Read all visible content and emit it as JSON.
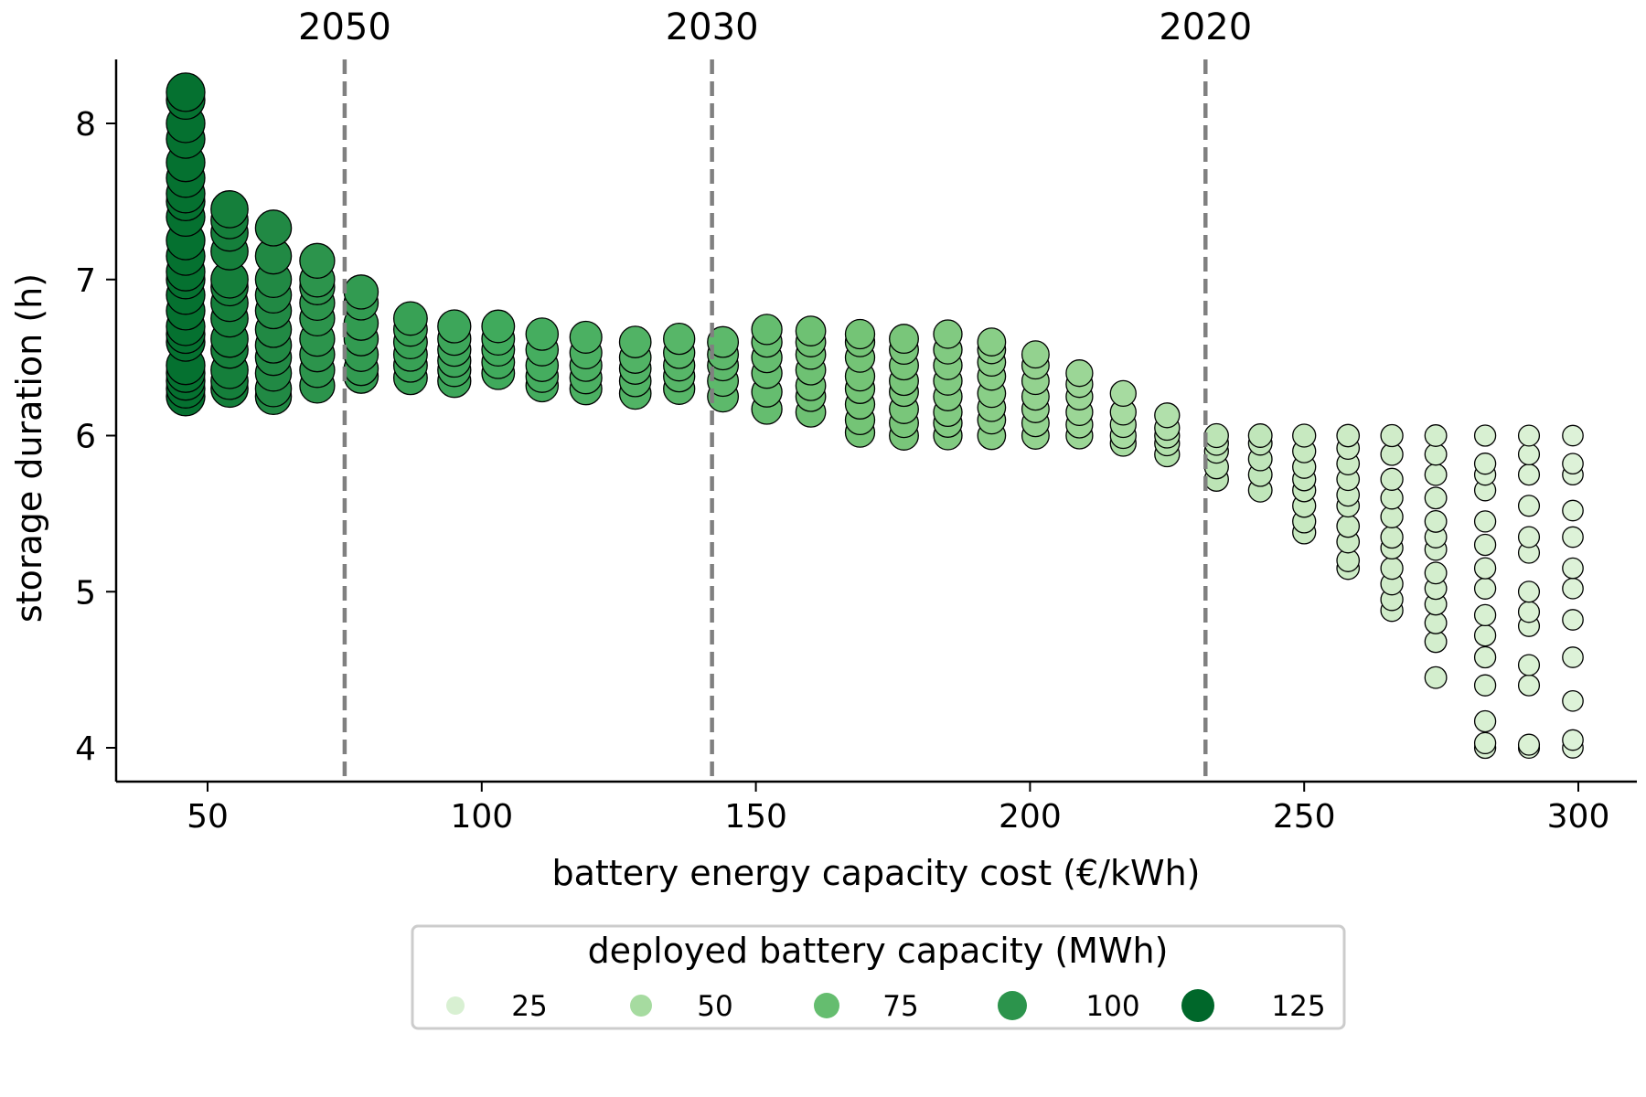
{
  "chart_data": {
    "type": "scatter",
    "xlabel": "battery energy capacity cost (€/kWh)",
    "ylabel": "storage duration (h)",
    "xlim": [
      33,
      312
    ],
    "ylim": [
      3.8,
      8.4
    ],
    "x_ticks": [
      50,
      100,
      150,
      200,
      250,
      300
    ],
    "y_ticks": [
      4,
      5,
      6,
      7,
      8
    ],
    "grid": false,
    "vertical_lines": [
      {
        "x": 75,
        "label": "2050"
      },
      {
        "x": 142,
        "label": "2030"
      },
      {
        "x": 232,
        "label": "2020"
      }
    ],
    "legend": {
      "title": "deployed battery capacity (MWh)",
      "placement": "below",
      "entries": [
        {
          "label": "25",
          "value": 25
        },
        {
          "label": "50",
          "value": 50
        },
        {
          "label": "75",
          "value": 75
        },
        {
          "label": "100",
          "value": 100
        },
        {
          "label": "125",
          "value": 125
        }
      ]
    },
    "color_scale": {
      "name": "Greens",
      "vmin": 0,
      "vmax": 140
    },
    "points_by_cost": [
      {
        "x": 46,
        "capacity": 120,
        "y": [
          6.25,
          6.3,
          6.35,
          6.4,
          6.45,
          6.6,
          6.65,
          6.7,
          6.8,
          6.9,
          7.0,
          7.05,
          7.15,
          7.25,
          7.4,
          7.5,
          7.55,
          7.65,
          7.75,
          7.9,
          8.0,
          8.15,
          8.2
        ]
      },
      {
        "x": 54,
        "capacity": 112,
        "y": [
          6.3,
          6.35,
          6.42,
          6.55,
          6.62,
          6.75,
          6.85,
          6.95,
          7.0,
          7.18,
          7.3,
          7.38,
          7.45
        ]
      },
      {
        "x": 62,
        "capacity": 106,
        "y": [
          6.25,
          6.3,
          6.4,
          6.5,
          6.58,
          6.68,
          6.8,
          6.9,
          7.0,
          7.15,
          7.33
        ]
      },
      {
        "x": 70,
        "capacity": 100,
        "y": [
          6.32,
          6.42,
          6.52,
          6.62,
          6.75,
          6.85,
          6.95,
          7.0,
          7.12
        ]
      },
      {
        "x": 78,
        "capacity": 96,
        "y": [
          6.38,
          6.43,
          6.52,
          6.62,
          6.72,
          6.85,
          6.92
        ]
      },
      {
        "x": 87,
        "capacity": 93,
        "y": [
          6.37,
          6.45,
          6.52,
          6.6,
          6.68,
          6.75
        ]
      },
      {
        "x": 95,
        "capacity": 90,
        "y": [
          6.35,
          6.42,
          6.48,
          6.55,
          6.62,
          6.7
        ]
      },
      {
        "x": 103,
        "capacity": 88,
        "y": [
          6.4,
          6.47,
          6.55,
          6.62,
          6.7
        ]
      },
      {
        "x": 111,
        "capacity": 86,
        "y": [
          6.32,
          6.38,
          6.45,
          6.55,
          6.65
        ]
      },
      {
        "x": 119,
        "capacity": 84,
        "y": [
          6.3,
          6.37,
          6.45,
          6.53,
          6.63
        ]
      },
      {
        "x": 128,
        "capacity": 82,
        "y": [
          6.27,
          6.35,
          6.43,
          6.5,
          6.6
        ]
      },
      {
        "x": 136,
        "capacity": 80,
        "y": [
          6.3,
          6.38,
          6.45,
          6.53,
          6.62
        ]
      },
      {
        "x": 144,
        "capacity": 78,
        "y": [
          6.25,
          6.35,
          6.45,
          6.52,
          6.6
        ]
      },
      {
        "x": 152,
        "capacity": 75,
        "y": [
          6.17,
          6.28,
          6.4,
          6.5,
          6.6,
          6.68
        ]
      },
      {
        "x": 160,
        "capacity": 72,
        "y": [
          6.15,
          6.25,
          6.32,
          6.42,
          6.52,
          6.6,
          6.67
        ]
      },
      {
        "x": 169,
        "capacity": 70,
        "y": [
          6.02,
          6.1,
          6.2,
          6.3,
          6.38,
          6.5,
          6.6,
          6.65
        ]
      },
      {
        "x": 177,
        "capacity": 68,
        "y": [
          6.0,
          6.08,
          6.17,
          6.28,
          6.35,
          6.45,
          6.55,
          6.62
        ]
      },
      {
        "x": 185,
        "capacity": 65,
        "y": [
          6.0,
          6.08,
          6.15,
          6.25,
          6.35,
          6.45,
          6.55,
          6.65
        ]
      },
      {
        "x": 193,
        "capacity": 62,
        "y": [
          6.0,
          6.1,
          6.18,
          6.27,
          6.38,
          6.47,
          6.55,
          6.6
        ]
      },
      {
        "x": 201,
        "capacity": 58,
        "y": [
          6.0,
          6.08,
          6.17,
          6.25,
          6.35,
          6.45,
          6.52
        ]
      },
      {
        "x": 209,
        "capacity": 55,
        "y": [
          6.0,
          6.07,
          6.15,
          6.25,
          6.33,
          6.4
        ]
      },
      {
        "x": 217,
        "capacity": 50,
        "y": [
          5.95,
          6.0,
          6.07,
          6.15,
          6.27
        ]
      },
      {
        "x": 225,
        "capacity": 45,
        "y": [
          5.88,
          5.95,
          6.0,
          6.05,
          6.13
        ]
      },
      {
        "x": 234,
        "capacity": 40,
        "y": [
          5.72,
          5.8,
          5.9,
          5.95,
          6.0
        ]
      },
      {
        "x": 242,
        "capacity": 38,
        "y": [
          5.65,
          5.75,
          5.85,
          5.95,
          6.0
        ]
      },
      {
        "x": 250,
        "capacity": 35,
        "y": [
          5.38,
          5.45,
          5.55,
          5.65,
          5.72,
          5.8,
          5.9,
          6.0
        ]
      },
      {
        "x": 258,
        "capacity": 32,
        "y": [
          5.15,
          5.2,
          5.32,
          5.42,
          5.55,
          5.62,
          5.72,
          5.82,
          5.92,
          6.0
        ]
      },
      {
        "x": 266,
        "capacity": 30,
        "y": [
          4.88,
          4.95,
          5.05,
          5.15,
          5.28,
          5.35,
          5.48,
          5.6,
          5.72,
          5.88,
          6.0
        ]
      },
      {
        "x": 274,
        "capacity": 28,
        "y": [
          4.45,
          4.68,
          4.8,
          4.92,
          5.02,
          5.12,
          5.27,
          5.35,
          5.45,
          5.6,
          5.75,
          5.88,
          6.0
        ]
      },
      {
        "x": 283,
        "capacity": 25,
        "y": [
          4.0,
          4.03,
          4.17,
          4.4,
          4.58,
          4.72,
          4.85,
          5.02,
          5.15,
          5.3,
          5.45,
          5.65,
          5.75,
          5.82,
          6.0
        ]
      },
      {
        "x": 291,
        "capacity": 24,
        "y": [
          4.0,
          4.02,
          4.4,
          4.53,
          4.78,
          4.87,
          5.0,
          5.25,
          5.35,
          5.55,
          5.75,
          5.88,
          6.0
        ]
      },
      {
        "x": 299,
        "capacity": 22,
        "y": [
          4.0,
          4.05,
          4.3,
          4.58,
          4.82,
          5.02,
          5.15,
          5.35,
          5.52,
          5.75,
          5.82,
          6.0
        ]
      }
    ]
  }
}
